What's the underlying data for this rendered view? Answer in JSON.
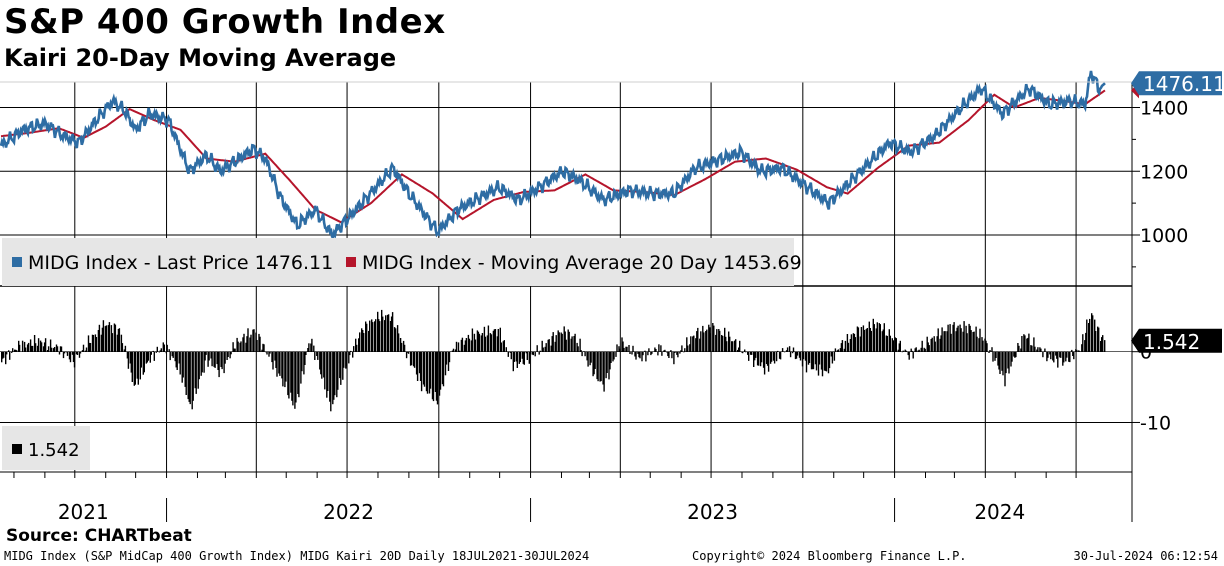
{
  "title": "S&P 400 Growth Index",
  "subtitle": "Kairi 20-Day Moving Average",
  "source": "Source: CHARTbeat",
  "footer": {
    "description": "MIDG Index (S&P MidCap 400 Growth Index) MIDG Kairi 20D  Daily 18JUL2021-30JUL2024",
    "copyright": "Copyright© 2024 Bloomberg Finance L.P.",
    "timestamp": "30-Jul-2024 06:12:54"
  },
  "colors": {
    "price": "#2e6da4",
    "ma": "#b5152b",
    "kairi": "#000000",
    "price_badge": "#2e6da4",
    "kairi_badge": "#000000"
  },
  "chart_data": [
    {
      "type": "line",
      "x_range": [
        "2021-07-18",
        "2024-07-30"
      ],
      "ylim": [
        840,
        1480
      ],
      "yticks": [
        "1000",
        "1200",
        "1400"
      ],
      "xlabels": [
        "2021",
        "2022",
        "2023",
        "2024"
      ],
      "grid": true,
      "legend_position": "bottom-left",
      "last_value_label": "1476.11",
      "series": [
        {
          "name": "MIDG Index - Last Price 1476.11",
          "color": "#2e6da4",
          "points": [
            [
              "2021-07-19",
              1280
            ],
            [
              "2021-08-10",
              1330
            ],
            [
              "2021-09-01",
              1350
            ],
            [
              "2021-09-20",
              1310
            ],
            [
              "2021-10-05",
              1290
            ],
            [
              "2021-10-25",
              1370
            ],
            [
              "2021-11-08",
              1420
            ],
            [
              "2021-11-20",
              1390
            ],
            [
              "2021-12-01",
              1330
            ],
            [
              "2021-12-15",
              1380
            ],
            [
              "2022-01-03",
              1360
            ],
            [
              "2022-01-24",
              1200
            ],
            [
              "2022-02-10",
              1250
            ],
            [
              "2022-02-24",
              1200
            ],
            [
              "2022-03-29",
              1270
            ],
            [
              "2022-04-10",
              1240
            ],
            [
              "2022-04-25",
              1120
            ],
            [
              "2022-05-12",
              1030
            ],
            [
              "2022-05-30",
              1080
            ],
            [
              "2022-06-16",
              1000
            ],
            [
              "2022-07-10",
              1080
            ],
            [
              "2022-08-16",
              1210
            ],
            [
              "2022-09-01",
              1130
            ],
            [
              "2022-09-30",
              1010
            ],
            [
              "2022-10-20",
              1080
            ],
            [
              "2022-11-30",
              1150
            ],
            [
              "2022-12-20",
              1110
            ],
            [
              "2023-01-10",
              1150
            ],
            [
              "2023-02-02",
              1200
            ],
            [
              "2023-02-20",
              1170
            ],
            [
              "2023-03-15",
              1110
            ],
            [
              "2023-04-10",
              1140
            ],
            [
              "2023-05-04",
              1130
            ],
            [
              "2023-05-25",
              1130
            ],
            [
              "2023-06-15",
              1210
            ],
            [
              "2023-07-31",
              1260
            ],
            [
              "2023-08-20",
              1200
            ],
            [
              "2023-09-10",
              1210
            ],
            [
              "2023-10-27",
              1100
            ],
            [
              "2023-11-15",
              1160
            ],
            [
              "2023-12-27",
              1290
            ],
            [
              "2024-01-17",
              1260
            ],
            [
              "2024-02-10",
              1310
            ],
            [
              "2024-03-08",
              1400
            ],
            [
              "2024-03-28",
              1460
            ],
            [
              "2024-04-18",
              1380
            ],
            [
              "2024-05-15",
              1460
            ],
            [
              "2024-06-04",
              1410
            ],
            [
              "2024-06-25",
              1420
            ],
            [
              "2024-07-10",
              1410
            ],
            [
              "2024-07-16",
              1510
            ],
            [
              "2024-07-24",
              1460
            ],
            [
              "2024-07-30",
              1476.11
            ]
          ]
        },
        {
          "name": "MIDG Index - Moving Average 20 Day 1453.69",
          "color": "#b5152b",
          "points": [
            [
              "2021-07-19",
              1310
            ],
            [
              "2021-08-15",
              1320
            ],
            [
              "2021-09-15",
              1335
            ],
            [
              "2021-10-10",
              1305
            ],
            [
              "2021-11-01",
              1340
            ],
            [
              "2021-11-25",
              1395
            ],
            [
              "2021-12-20",
              1360
            ],
            [
              "2022-01-15",
              1330
            ],
            [
              "2022-02-10",
              1240
            ],
            [
              "2022-03-10",
              1230
            ],
            [
              "2022-04-10",
              1255
            ],
            [
              "2022-05-05",
              1170
            ],
            [
              "2022-05-30",
              1080
            ],
            [
              "2022-06-25",
              1040
            ],
            [
              "2022-07-25",
              1100
            ],
            [
              "2022-08-25",
              1190
            ],
            [
              "2022-09-25",
              1130
            ],
            [
              "2022-10-25",
              1050
            ],
            [
              "2022-11-25",
              1110
            ],
            [
              "2022-12-25",
              1135
            ],
            [
              "2023-01-25",
              1140
            ],
            [
              "2023-02-25",
              1190
            ],
            [
              "2023-03-25",
              1140
            ],
            [
              "2023-04-25",
              1135
            ],
            [
              "2023-05-25",
              1125
            ],
            [
              "2023-06-25",
              1175
            ],
            [
              "2023-07-25",
              1230
            ],
            [
              "2023-08-25",
              1240
            ],
            [
              "2023-09-25",
              1205
            ],
            [
              "2023-10-25",
              1150
            ],
            [
              "2023-11-15",
              1130
            ],
            [
              "2023-12-15",
              1210
            ],
            [
              "2024-01-15",
              1280
            ],
            [
              "2024-02-15",
              1290
            ],
            [
              "2024-03-15",
              1360
            ],
            [
              "2024-04-10",
              1440
            ],
            [
              "2024-04-30",
              1400
            ],
            [
              "2024-05-25",
              1430
            ],
            [
              "2024-06-20",
              1420
            ],
            [
              "2024-07-10",
              1410
            ],
            [
              "2024-07-30",
              1453.69
            ]
          ]
        }
      ]
    },
    {
      "type": "bar",
      "x_range": [
        "2021-07-18",
        "2024-07-30"
      ],
      "ylim": [
        -17,
        9
      ],
      "yticks": [
        "0",
        "-10"
      ],
      "grid": true,
      "legend_position": "bottom-left",
      "last_value_label": "1.542",
      "series": [
        {
          "name": "1.542",
          "color": "#000000",
          "points": [
            [
              "2021-07-19",
              -1.5
            ],
            [
              "2021-08-05",
              0.8
            ],
            [
              "2021-08-25",
              1.5
            ],
            [
              "2021-09-15",
              0.5
            ],
            [
              "2021-09-30",
              -1.5
            ],
            [
              "2021-10-15",
              1.5
            ],
            [
              "2021-11-01",
              4
            ],
            [
              "2021-11-15",
              3
            ],
            [
              "2021-11-30",
              -5
            ],
            [
              "2021-12-15",
              -1
            ],
            [
              "2021-12-30",
              1
            ],
            [
              "2022-01-15",
              -3
            ],
            [
              "2022-01-25",
              -8
            ],
            [
              "2022-02-10",
              -1
            ],
            [
              "2022-02-25",
              -3
            ],
            [
              "2022-03-10",
              1
            ],
            [
              "2022-03-30",
              3
            ],
            [
              "2022-04-15",
              -1
            ],
            [
              "2022-04-30",
              -5
            ],
            [
              "2022-05-10",
              -8
            ],
            [
              "2022-05-25",
              2
            ],
            [
              "2022-06-15",
              -8
            ],
            [
              "2022-06-30",
              -2
            ],
            [
              "2022-07-15",
              3
            ],
            [
              "2022-08-01",
              5
            ],
            [
              "2022-08-15",
              5
            ],
            [
              "2022-09-01",
              -1
            ],
            [
              "2022-09-15",
              -5
            ],
            [
              "2022-09-30",
              -7
            ],
            [
              "2022-10-15",
              0.5
            ],
            [
              "2022-11-05",
              2.5
            ],
            [
              "2022-11-30",
              3
            ],
            [
              "2022-12-15",
              -2
            ],
            [
              "2022-12-30",
              -1
            ],
            [
              "2023-01-15",
              1
            ],
            [
              "2023-02-01",
              3
            ],
            [
              "2023-02-15",
              2
            ],
            [
              "2023-03-01",
              -2
            ],
            [
              "2023-03-15",
              -5
            ],
            [
              "2023-04-01",
              1.5
            ],
            [
              "2023-04-20",
              -1
            ],
            [
              "2023-05-10",
              0.5
            ],
            [
              "2023-05-25",
              -1
            ],
            [
              "2023-06-15",
              2.5
            ],
            [
              "2023-07-01",
              3.5
            ],
            [
              "2023-07-20",
              2
            ],
            [
              "2023-08-10",
              -1
            ],
            [
              "2023-08-25",
              -2.5
            ],
            [
              "2023-09-15",
              0.5
            ],
            [
              "2023-10-05",
              -2
            ],
            [
              "2023-10-25",
              -3
            ],
            [
              "2023-11-05",
              0.5
            ],
            [
              "2023-11-25",
              3
            ],
            [
              "2023-12-15",
              4
            ],
            [
              "2023-12-30",
              2
            ],
            [
              "2024-01-15",
              -0.5
            ],
            [
              "2024-02-05",
              1.5
            ],
            [
              "2024-02-25",
              3.5
            ],
            [
              "2024-03-15",
              3.5
            ],
            [
              "2024-03-30",
              2
            ],
            [
              "2024-04-10",
              -1
            ],
            [
              "2024-04-20",
              -4
            ],
            [
              "2024-05-10",
              2.5
            ],
            [
              "2024-05-20",
              1
            ],
            [
              "2024-06-05",
              -1
            ],
            [
              "2024-06-20",
              -1.5
            ],
            [
              "2024-07-05",
              0.5
            ],
            [
              "2024-07-16",
              5.5
            ],
            [
              "2024-07-24",
              2.5
            ],
            [
              "2024-07-30",
              1.542
            ]
          ]
        }
      ]
    }
  ]
}
